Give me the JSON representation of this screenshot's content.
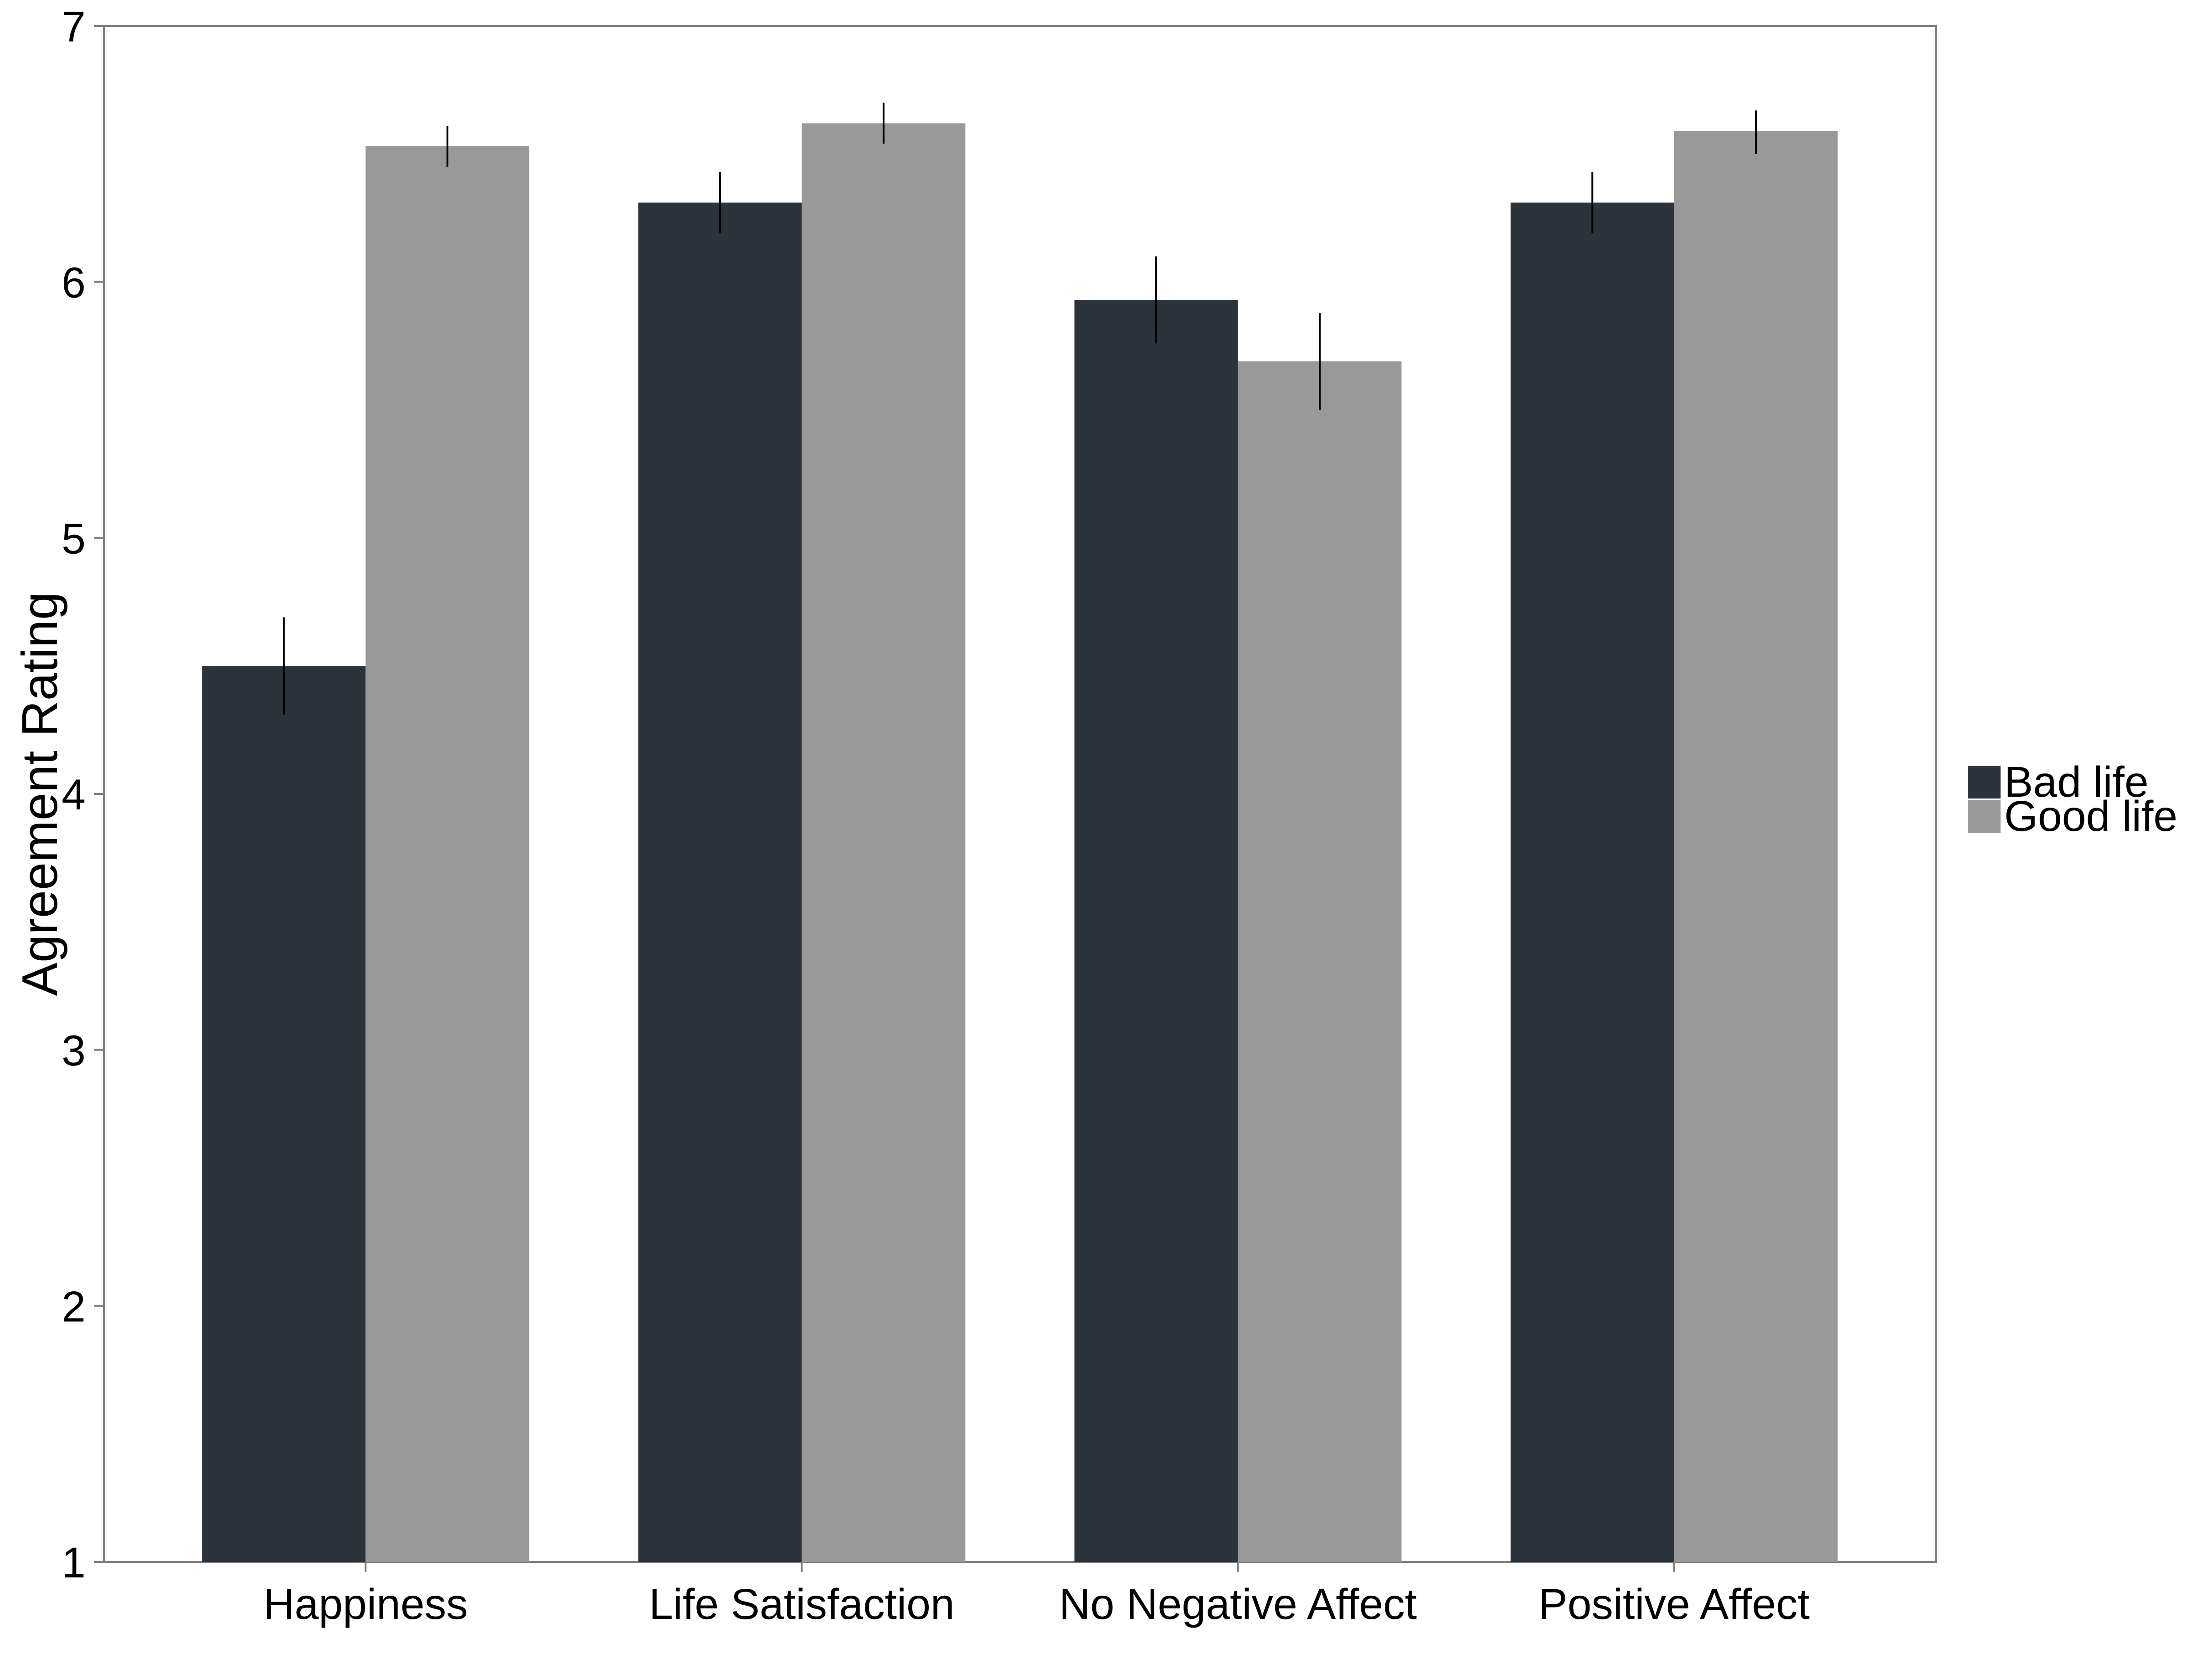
{
  "chart_data": {
    "type": "bar",
    "title": "",
    "xlabel": "",
    "ylabel": "Agreement Rating",
    "ylim": [
      1,
      7
    ],
    "yticks": [
      "1",
      "2",
      "3",
      "4",
      "5",
      "6",
      "7"
    ],
    "categories": [
      "Happiness",
      "Life Satisfaction",
      "No Negative Affect",
      "Positive Affect"
    ],
    "series": [
      {
        "name": "Bad life",
        "color": "#2d333a",
        "values": [
          4.5,
          6.31,
          5.93,
          6.31
        ],
        "error_low": [
          4.31,
          6.19,
          5.76,
          6.19
        ],
        "error_high": [
          4.69,
          6.43,
          6.1,
          6.43
        ]
      },
      {
        "name": "Good life",
        "color": "#999999",
        "values": [
          6.53,
          6.62,
          5.69,
          6.59
        ],
        "error_low": [
          6.45,
          6.54,
          5.5,
          6.5
        ],
        "error_high": [
          6.61,
          6.7,
          5.88,
          6.67
        ]
      }
    ],
    "grid": false,
    "legend_position": "right"
  }
}
